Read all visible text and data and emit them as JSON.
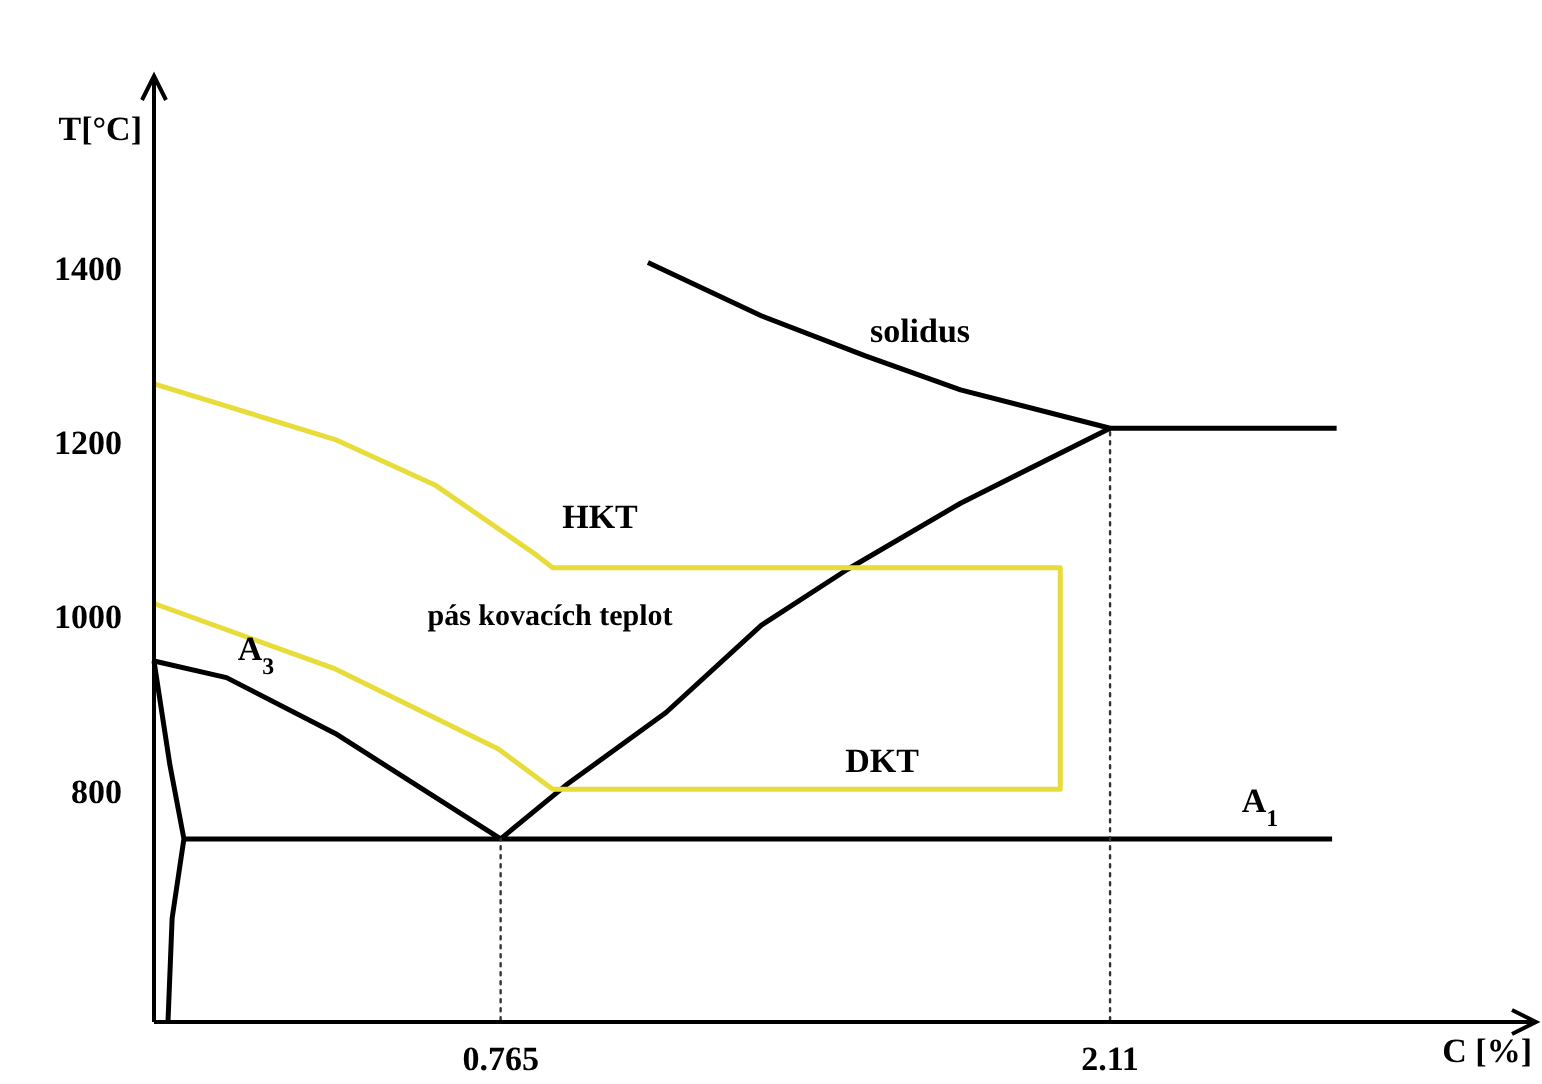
{
  "chart_data": {
    "type": "line",
    "xlabel": "C [%]",
    "ylabel": "T[°C]",
    "xlim": [
      0,
      3.05
    ],
    "ylim": [
      535,
      1620
    ],
    "xticks": [
      0.765,
      2.11
    ],
    "yticks": [
      800,
      1000,
      1200,
      1400
    ],
    "grid": false,
    "marker": "none",
    "series": [
      {
        "color": "#000000",
        "x": [
          1.09,
          1.34,
          1.57,
          1.78,
          2.11,
          2.61
        ],
        "values": [
          1406,
          1345,
          1299,
          1260,
          1216,
          1216
        ]
      },
      {
        "color": "#000000",
        "x": [
          0.765,
          0.91,
          1.13,
          1.34,
          1.53,
          1.78,
          2.11
        ],
        "values": [
          745,
          807,
          890,
          990,
          1054,
          1130,
          1216
        ]
      },
      {
        "color": "#000000",
        "x": [
          0.066,
          2.6
        ],
        "values": [
          745,
          745
        ]
      },
      {
        "color": "#000000",
        "x": [
          0,
          0.16,
          0.4,
          0.765
        ],
        "values": [
          949,
          930,
          866,
          745
        ]
      },
      {
        "color": "#000000",
        "x": [
          0,
          0.035,
          0.066,
          0.04,
          0.031
        ],
        "values": [
          949,
          830,
          745,
          654,
          537
        ]
      },
      {
        "color": "#e8dc3a",
        "x": [
          0,
          0.4,
          0.62,
          0.84,
          0.88,
          2.0,
          2.0,
          0.88,
          0.76,
          0.4,
          0
        ],
        "values": [
          1267,
          1203,
          1151,
          1072,
          1056,
          1056,
          802,
          802,
          848,
          940,
          1015
        ]
      },
      {
        "color": "#333333",
        "line_style": "dotted",
        "x": [
          0.765,
          0.765
        ],
        "values": [
          537,
          745
        ]
      },
      {
        "color": "#333333",
        "line_style": "dotted",
        "x": [
          2.11,
          2.11
        ],
        "values": [
          537,
          1216
        ]
      }
    ],
    "annotations": [
      "solidus",
      "HKT",
      "pás kovacích teplot",
      "DKT",
      "A$_{3}$",
      "A$_{1}$"
    ]
  }
}
